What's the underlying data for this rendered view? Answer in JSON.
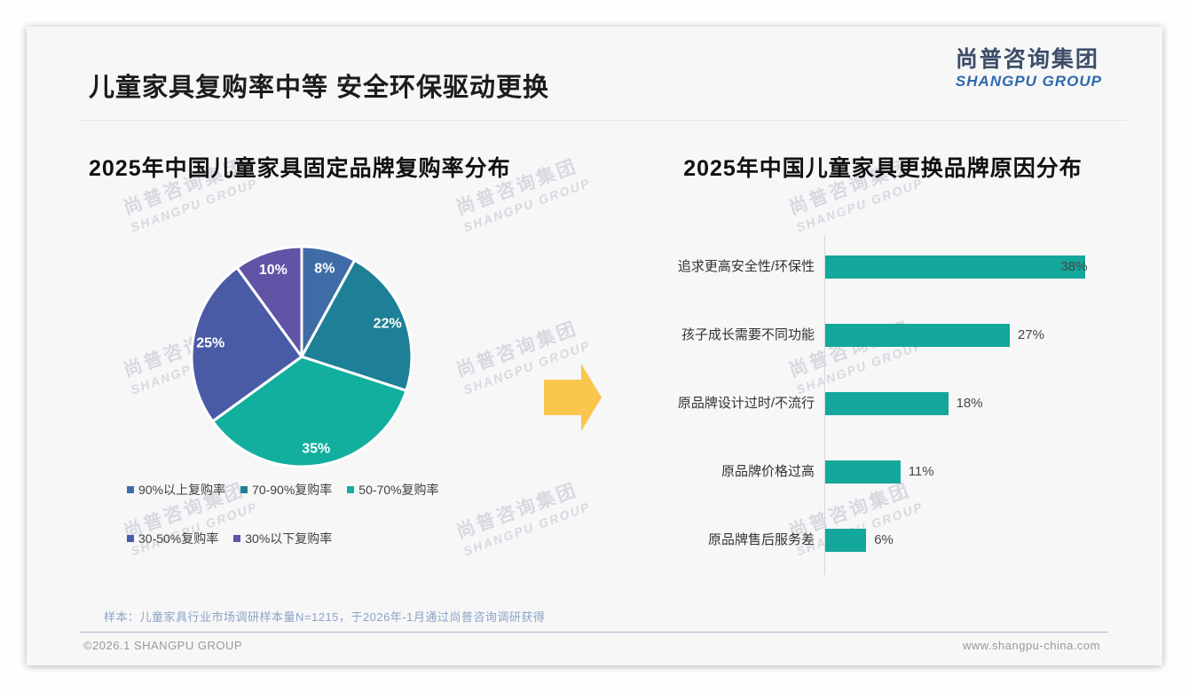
{
  "page": {
    "title": "儿童家具复购率中等 安全环保驱动更换",
    "logo": {
      "cn": "尚普咨询集团",
      "en": "SHANGPU GROUP"
    },
    "watermark": {
      "cn": "尚普咨询集团",
      "en": "SHANGPU GROUP"
    },
    "footer": {
      "note": "样本：儿童家具行业市场调研样本量N=1215，于2026年-1月通过尚普咨询调研获得",
      "copyright": "©2026.1 SHANGPU GROUP",
      "website": "www.shangpu-china.com"
    },
    "colors": {
      "arrow": "#FAC64D",
      "slide_bg": "#F7F7F8",
      "watermark": "#CDD0D8"
    }
  },
  "chart_data": [
    {
      "type": "pie",
      "title": "2025年中国儿童家具固定品牌复购率分布",
      "labels": [
        "90%以上复购率",
        "70-90%复购率",
        "50-70%复购率",
        "30-50%复购率",
        "30%以下复购率"
      ],
      "values": [
        8,
        22,
        35,
        25,
        10
      ],
      "data_labels": [
        "8%",
        "22%",
        "35%",
        "25%",
        "10%"
      ],
      "colors": [
        "#3F6CA6",
        "#1E8096",
        "#12AF9F",
        "#4A5BA6",
        "#6153A6"
      ],
      "start_angle_deg": 0,
      "direction": "clockwise",
      "legend_position": "bottom"
    },
    {
      "type": "bar",
      "orientation": "horizontal",
      "title": "2025年中国儿童家具更换品牌原因分布",
      "categories": [
        "追求更高安全性/环保性",
        "孩子成长需要不同功能",
        "原品牌设计过时/不流行",
        "原品牌价格过高",
        "原品牌售后服务差"
      ],
      "values": [
        38,
        27,
        18,
        11,
        6
      ],
      "data_labels": [
        "38%",
        "27%",
        "18%",
        "11%",
        "6%"
      ],
      "bar_color": "#14A79B",
      "xlim": [
        0,
        40
      ],
      "gridlines": false
    }
  ]
}
